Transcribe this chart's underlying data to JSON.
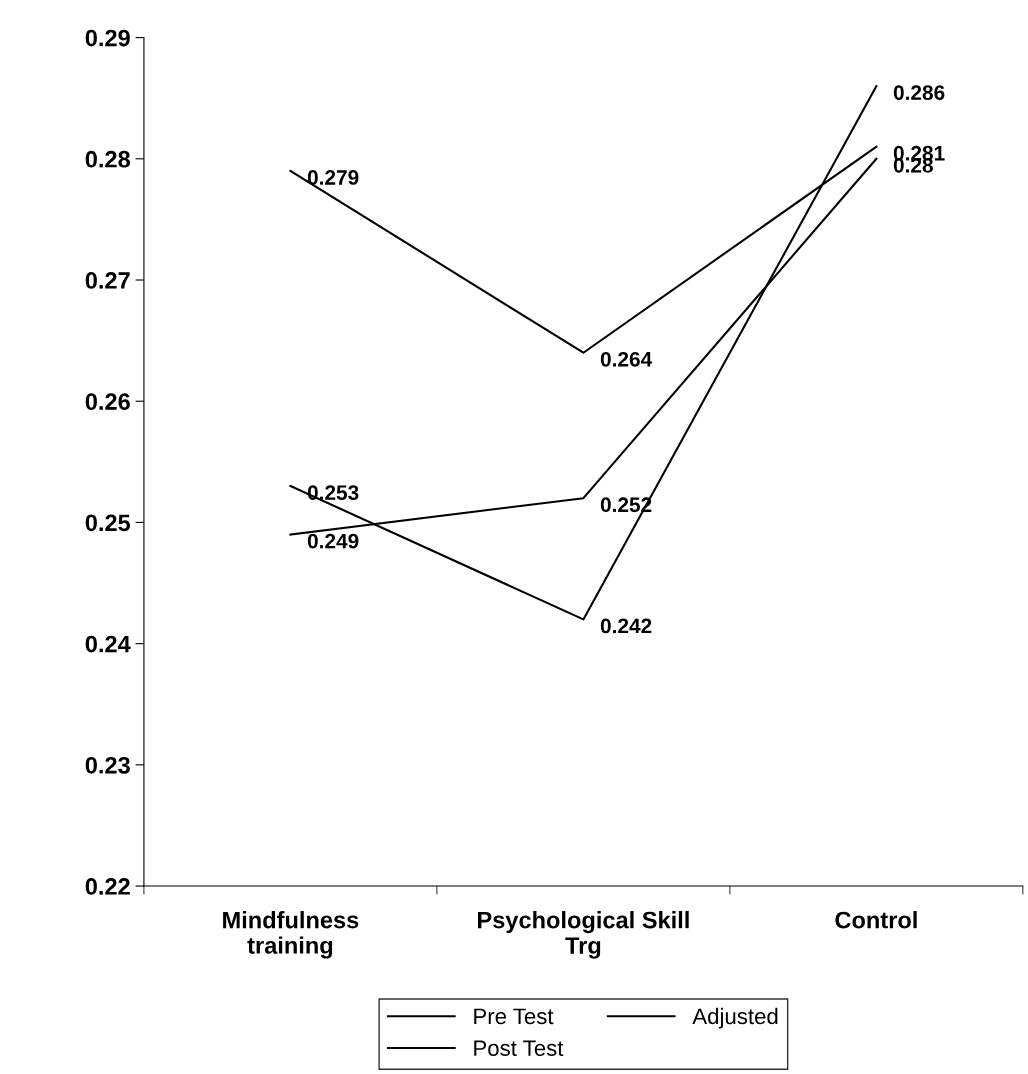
{
  "chart_data": {
    "type": "line",
    "categories": [
      "Mindfulness training",
      "Psychological Skill Trg",
      "Control"
    ],
    "series": [
      {
        "name": "Pre Test",
        "color": "#000000",
        "values": [
          0.279,
          0.264,
          0.281
        ]
      },
      {
        "name": "Post Test",
        "color": "#000000",
        "values": [
          0.253,
          0.242,
          0.286
        ]
      },
      {
        "name": "Adjusted",
        "color": "#000000",
        "values": [
          0.249,
          0.252,
          0.28
        ]
      }
    ],
    "ylim": [
      0.22,
      0.29
    ],
    "yticks": [
      0.22,
      0.23,
      0.24,
      0.25,
      0.26,
      0.27,
      0.28,
      0.29
    ],
    "data_labels": true,
    "legend": "bottom",
    "grid": false,
    "marker": "none",
    "line_style": "solid"
  }
}
